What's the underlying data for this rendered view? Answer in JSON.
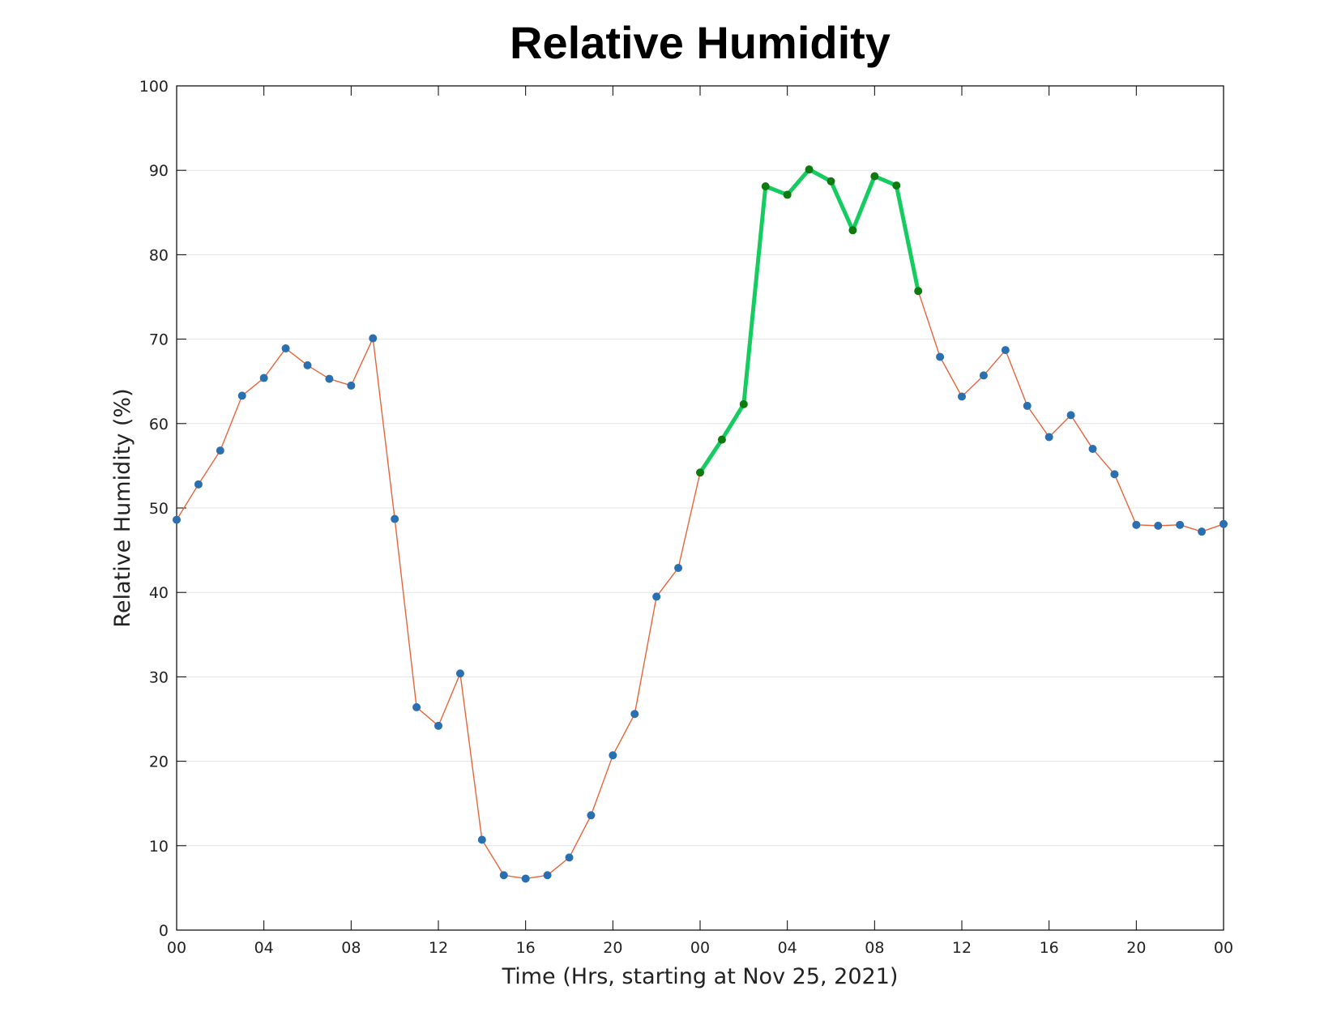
{
  "chart_data": {
    "type": "line",
    "title": "Relative Humidity",
    "xlabel": "Time (Hrs, starting at Nov 25, 2021)",
    "ylabel": "Relative Humidity (%)",
    "ylim": [
      0,
      100
    ],
    "xlim": [
      "2021-11-25 00:00",
      "2021-11-27 00:00"
    ],
    "yticks": [
      "0",
      "10",
      "20",
      "30",
      "40",
      "50",
      "60",
      "70",
      "80",
      "90",
      "100"
    ],
    "xticks": [
      "00",
      "04",
      "08",
      "12",
      "16",
      "20",
      "00",
      "04",
      "08",
      "12",
      "16",
      "20",
      "00"
    ],
    "grid": "horizontal",
    "colors": {
      "line": "#e8643a",
      "marker": "#2a6fb0",
      "highlight_line": "#14cc60",
      "highlight_marker": "#0f7a10"
    },
    "x": [
      "2021-11-25 00:00",
      "2021-11-25 01:00",
      "2021-11-25 02:00",
      "2021-11-25 03:00",
      "2021-11-25 04:00",
      "2021-11-25 05:00",
      "2021-11-25 06:00",
      "2021-11-25 07:00",
      "2021-11-25 08:00",
      "2021-11-25 09:00",
      "2021-11-25 10:00",
      "2021-11-25 11:00",
      "2021-11-25 12:00",
      "2021-11-25 13:00",
      "2021-11-25 14:00",
      "2021-11-25 15:00",
      "2021-11-25 16:00",
      "2021-11-25 17:00",
      "2021-11-25 18:00",
      "2021-11-25 19:00",
      "2021-11-25 20:00",
      "2021-11-25 21:00",
      "2021-11-25 22:00",
      "2021-11-25 23:00",
      "2021-11-26 00:00",
      "2021-11-26 01:00",
      "2021-11-26 02:00",
      "2021-11-26 03:00",
      "2021-11-26 04:00",
      "2021-11-26 05:00",
      "2021-11-26 06:00",
      "2021-11-26 07:00",
      "2021-11-26 08:00",
      "2021-11-26 09:00",
      "2021-11-26 10:00",
      "2021-11-26 11:00",
      "2021-11-26 12:00",
      "2021-11-26 13:00",
      "2021-11-26 14:00",
      "2021-11-26 15:00",
      "2021-11-26 16:00",
      "2021-11-26 17:00",
      "2021-11-26 18:00",
      "2021-11-26 19:00",
      "2021-11-26 20:00",
      "2021-11-26 21:00",
      "2021-11-26 22:00",
      "2021-11-26 23:00",
      "2021-11-27 00:00"
    ],
    "series": [
      {
        "values": [
          48.6,
          52.8,
          56.8,
          63.3,
          65.4,
          68.9,
          66.9,
          65.3,
          64.5,
          70.1,
          48.7,
          26.4,
          24.2,
          30.4,
          10.7,
          6.5,
          6.1,
          6.5,
          8.6,
          13.6,
          20.7,
          25.6,
          39.5,
          42.9,
          54.2,
          58.1,
          62.3,
          88.1,
          87.1,
          90.1,
          88.7,
          82.9,
          89.3,
          88.2,
          75.7,
          67.9,
          63.2,
          65.7,
          68.7,
          62.1,
          58.4,
          61.0,
          57.0,
          54.0,
          48.0,
          47.9,
          48.0,
          47.2,
          48.1
        ],
        "highlight_range": [
          "2021-11-26 00:00",
          "2021-11-26 10:00"
        ]
      }
    ]
  }
}
